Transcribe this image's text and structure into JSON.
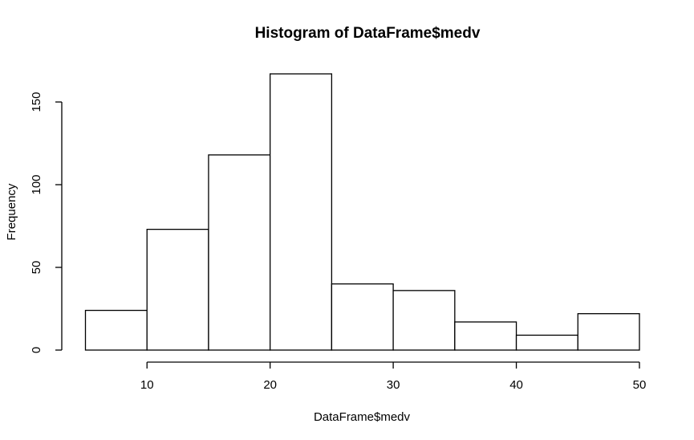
{
  "chart_data": {
    "type": "bar",
    "title": "Histogram of DataFrame$medv",
    "xlabel": "DataFrame$medv",
    "ylabel": "Frequency",
    "bins": [
      {
        "from": 5,
        "to": 10,
        "count": 24
      },
      {
        "from": 10,
        "to": 15,
        "count": 73
      },
      {
        "from": 15,
        "to": 20,
        "count": 118
      },
      {
        "from": 20,
        "to": 25,
        "count": 167
      },
      {
        "from": 25,
        "to": 30,
        "count": 40
      },
      {
        "from": 30,
        "to": 35,
        "count": 36
      },
      {
        "from": 35,
        "to": 40,
        "count": 17
      },
      {
        "from": 40,
        "to": 45,
        "count": 9
      },
      {
        "from": 45,
        "to": 50,
        "count": 22
      }
    ],
    "xticks": [
      10,
      20,
      30,
      40,
      50
    ],
    "yticks": [
      0,
      50,
      100,
      150
    ],
    "xlim": [
      5,
      50
    ],
    "ylim": [
      0,
      167
    ],
    "grid": false,
    "bar_fill": "#ffffff",
    "bar_stroke": "#000000"
  }
}
